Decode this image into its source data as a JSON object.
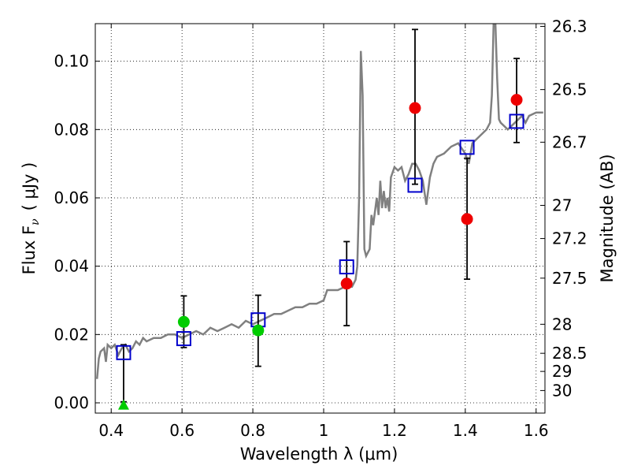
{
  "chart_data": {
    "type": "scatter",
    "xlabel": "Wavelength  λ (μm)",
    "ylabel_left": "Flux  F",
    "ylabel_left_sub": "ν",
    "ylabel_left_unit": "( μJy )",
    "ylabel_right": "Magnitude (AB)",
    "xlim": [
      0.355,
      1.625
    ],
    "ylim": [
      -0.003,
      0.111
    ],
    "grid": true,
    "x_ticks": [
      0.4,
      0.6,
      0.8,
      1.0,
      1.2,
      1.4,
      1.6
    ],
    "x_tick_labels": [
      "0.4",
      "0.6",
      "0.8",
      "1",
      "1.2",
      "1.4",
      "1.6"
    ],
    "y_ticks": [
      0.0,
      0.02,
      0.04,
      0.06,
      0.08,
      0.1
    ],
    "y_tick_labels": [
      "0.00",
      "0.02",
      "0.04",
      "0.06",
      "0.08",
      "0.10"
    ],
    "right_ticks": [
      {
        "mag": "26.3",
        "flux": 0.1102
      },
      {
        "mag": "26.5",
        "flux": 0.0917
      },
      {
        "mag": "26.7",
        "flux": 0.0763
      },
      {
        "mag": "27",
        "flux": 0.0578
      },
      {
        "mag": "27.2",
        "flux": 0.0481
      },
      {
        "mag": "27.5",
        "flux": 0.0365
      },
      {
        "mag": "28",
        "flux": 0.023
      },
      {
        "mag": "28.5",
        "flux": 0.0145
      },
      {
        "mag": "29",
        "flux": 0.0092
      },
      {
        "mag": "30",
        "flux": 0.0036
      }
    ],
    "series": [
      {
        "kind": "line",
        "color": "#808080",
        "points": [
          [
            0.36,
            0.007
          ],
          [
            0.365,
            0.013
          ],
          [
            0.37,
            0.015
          ],
          [
            0.38,
            0.016
          ],
          [
            0.385,
            0.012
          ],
          [
            0.39,
            0.017
          ],
          [
            0.4,
            0.016
          ],
          [
            0.41,
            0.017
          ],
          [
            0.42,
            0.014
          ],
          [
            0.43,
            0.016
          ],
          [
            0.44,
            0.017
          ],
          [
            0.45,
            0.015
          ],
          [
            0.46,
            0.016
          ],
          [
            0.47,
            0.018
          ],
          [
            0.48,
            0.017
          ],
          [
            0.49,
            0.019
          ],
          [
            0.5,
            0.018
          ],
          [
            0.52,
            0.019
          ],
          [
            0.54,
            0.019
          ],
          [
            0.56,
            0.02
          ],
          [
            0.58,
            0.02
          ],
          [
            0.6,
            0.019
          ],
          [
            0.62,
            0.02
          ],
          [
            0.64,
            0.021
          ],
          [
            0.66,
            0.02
          ],
          [
            0.68,
            0.022
          ],
          [
            0.7,
            0.021
          ],
          [
            0.72,
            0.022
          ],
          [
            0.74,
            0.023
          ],
          [
            0.76,
            0.022
          ],
          [
            0.78,
            0.024
          ],
          [
            0.8,
            0.023
          ],
          [
            0.82,
            0.024
          ],
          [
            0.84,
            0.025
          ],
          [
            0.86,
            0.026
          ],
          [
            0.88,
            0.026
          ],
          [
            0.9,
            0.027
          ],
          [
            0.92,
            0.028
          ],
          [
            0.94,
            0.028
          ],
          [
            0.96,
            0.029
          ],
          [
            0.98,
            0.029
          ],
          [
            1.0,
            0.03
          ],
          [
            1.01,
            0.033
          ],
          [
            1.02,
            0.033
          ],
          [
            1.04,
            0.033
          ],
          [
            1.06,
            0.034
          ],
          [
            1.08,
            0.034
          ],
          [
            1.09,
            0.036
          ],
          [
            1.095,
            0.04
          ],
          [
            1.1,
            0.06
          ],
          [
            1.105,
            0.103
          ],
          [
            1.11,
            0.09
          ],
          [
            1.115,
            0.045
          ],
          [
            1.12,
            0.043
          ],
          [
            1.13,
            0.045
          ],
          [
            1.135,
            0.055
          ],
          [
            1.14,
            0.052
          ],
          [
            1.15,
            0.06
          ],
          [
            1.155,
            0.055
          ],
          [
            1.16,
            0.065
          ],
          [
            1.165,
            0.057
          ],
          [
            1.17,
            0.062
          ],
          [
            1.175,
            0.057
          ],
          [
            1.18,
            0.06
          ],
          [
            1.185,
            0.056
          ],
          [
            1.19,
            0.066
          ],
          [
            1.2,
            0.069
          ],
          [
            1.21,
            0.068
          ],
          [
            1.22,
            0.069
          ],
          [
            1.23,
            0.065
          ],
          [
            1.24,
            0.067
          ],
          [
            1.25,
            0.07
          ],
          [
            1.26,
            0.07
          ],
          [
            1.27,
            0.068
          ],
          [
            1.28,
            0.065
          ],
          [
            1.29,
            0.058
          ],
          [
            1.3,
            0.066
          ],
          [
            1.31,
            0.07
          ],
          [
            1.32,
            0.072
          ],
          [
            1.34,
            0.073
          ],
          [
            1.36,
            0.075
          ],
          [
            1.38,
            0.076
          ],
          [
            1.4,
            0.073
          ],
          [
            1.41,
            0.07
          ],
          [
            1.42,
            0.076
          ],
          [
            1.44,
            0.078
          ],
          [
            1.46,
            0.08
          ],
          [
            1.47,
            0.082
          ],
          [
            1.475,
            0.09
          ],
          [
            1.48,
            0.111
          ],
          [
            1.485,
            0.111
          ],
          [
            1.49,
            0.095
          ],
          [
            1.495,
            0.083
          ],
          [
            1.5,
            0.082
          ],
          [
            1.52,
            0.08
          ],
          [
            1.54,
            0.082
          ],
          [
            1.55,
            0.083
          ],
          [
            1.56,
            0.084
          ],
          [
            1.57,
            0.082
          ],
          [
            1.58,
            0.084
          ],
          [
            1.6,
            0.085
          ],
          [
            1.62,
            0.085
          ]
        ]
      },
      {
        "kind": "squares",
        "color": "#0000cc",
        "points": [
          [
            0.435,
            0.0147
          ],
          [
            0.605,
            0.0188
          ],
          [
            0.815,
            0.0243
          ],
          [
            1.065,
            0.0398
          ],
          [
            1.258,
            0.0637
          ],
          [
            1.405,
            0.0748
          ],
          [
            1.545,
            0.0824
          ]
        ]
      },
      {
        "kind": "circles",
        "color": "#00cc00",
        "points": [
          [
            0.605,
            0.0237
          ],
          [
            0.815,
            0.0212
          ]
        ]
      },
      {
        "kind": "circles",
        "color": "#ee0000",
        "points": [
          [
            1.065,
            0.0349
          ],
          [
            1.258,
            0.0863
          ],
          [
            1.405,
            0.0538
          ],
          [
            1.545,
            0.0887
          ]
        ]
      },
      {
        "kind": "triangle",
        "color": "#00cc00",
        "points": [
          [
            0.435,
            -0.0006
          ]
        ]
      },
      {
        "kind": "errorbars",
        "color": "#000000",
        "bars": [
          {
            "x": 0.435,
            "low": 0.0003,
            "high": 0.017
          },
          {
            "x": 0.605,
            "low": 0.0162,
            "high": 0.0313
          },
          {
            "x": 0.815,
            "low": 0.0107,
            "high": 0.0315
          },
          {
            "x": 1.065,
            "low": 0.0226,
            "high": 0.0472
          },
          {
            "x": 1.258,
            "low": 0.064,
            "high": 0.1093
          },
          {
            "x": 1.405,
            "low": 0.0362,
            "high": 0.0716
          },
          {
            "x": 1.545,
            "low": 0.0762,
            "high": 0.1008
          }
        ]
      }
    ]
  }
}
